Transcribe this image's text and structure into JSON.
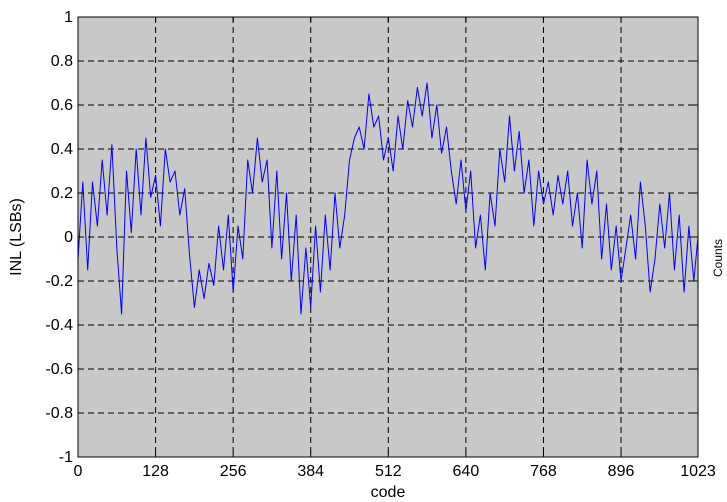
{
  "chart_data": {
    "type": "line",
    "title": "",
    "xlabel": "code",
    "ylabel": "INL (LSBs)",
    "xlim": [
      0,
      1023
    ],
    "ylim": [
      -1,
      1
    ],
    "grid": true,
    "grid_style": "dashed",
    "plot_background": "#c8c8c8",
    "x_ticks": [
      0,
      128,
      256,
      384,
      512,
      640,
      768,
      896,
      1023
    ],
    "y_ticks": [
      1,
      0.8,
      0.6,
      0.4,
      0.2,
      0,
      -0.2,
      -0.4,
      -0.6,
      -0.8,
      -1
    ],
    "y_tick_labels": [
      "1",
      "0.8",
      "0.6",
      "0.4",
      "0.2",
      "0",
      "-0.2",
      "-0.4",
      "-0.6",
      "-0.8",
      "-1"
    ],
    "side_label": "Counts",
    "series": [
      {
        "color": "#0000ff",
        "x": [
          0,
          8,
          16,
          24,
          32,
          40,
          48,
          56,
          64,
          72,
          80,
          88,
          96,
          104,
          112,
          120,
          128,
          136,
          144,
          152,
          160,
          168,
          176,
          184,
          192,
          200,
          208,
          216,
          224,
          232,
          240,
          248,
          256,
          264,
          272,
          280,
          288,
          296,
          304,
          312,
          320,
          328,
          336,
          344,
          352,
          360,
          368,
          376,
          384,
          392,
          400,
          408,
          416,
          424,
          432,
          440,
          448,
          456,
          464,
          472,
          480,
          488,
          496,
          504,
          512,
          520,
          528,
          536,
          544,
          552,
          560,
          568,
          576,
          584,
          592,
          600,
          608,
          616,
          624,
          632,
          640,
          648,
          656,
          664,
          672,
          680,
          688,
          696,
          704,
          712,
          720,
          728,
          736,
          744,
          752,
          760,
          768,
          776,
          784,
          792,
          800,
          808,
          816,
          824,
          832,
          840,
          848,
          856,
          864,
          872,
          880,
          888,
          896,
          904,
          912,
          920,
          928,
          936,
          944,
          952,
          960,
          968,
          976,
          984,
          992,
          1000,
          1008,
          1016,
          1023
        ],
        "y": [
          -0.1,
          0.25,
          -0.15,
          0.25,
          0.05,
          0.35,
          0.1,
          0.42,
          -0.05,
          -0.35,
          0.3,
          0.02,
          0.4,
          0.1,
          0.45,
          0.18,
          0.28,
          0.05,
          0.4,
          0.25,
          0.3,
          0.1,
          0.22,
          -0.08,
          -0.32,
          -0.15,
          -0.28,
          -0.12,
          -0.22,
          0.05,
          -0.15,
          0.1,
          -0.25,
          0.05,
          -0.1,
          0.35,
          0.2,
          0.45,
          0.25,
          0.35,
          -0.05,
          0.3,
          -0.1,
          0.2,
          -0.2,
          0.1,
          -0.35,
          -0.05,
          -0.32,
          0.05,
          -0.25,
          0.1,
          -0.15,
          0.2,
          -0.05,
          0.1,
          0.35,
          0.45,
          0.5,
          0.4,
          0.65,
          0.5,
          0.55,
          0.35,
          0.45,
          0.3,
          0.55,
          0.4,
          0.62,
          0.5,
          0.68,
          0.55,
          0.7,
          0.45,
          0.6,
          0.38,
          0.5,
          0.3,
          0.15,
          0.35,
          0.12,
          0.3,
          -0.05,
          0.1,
          -0.15,
          0.2,
          0.05,
          0.4,
          0.25,
          0.55,
          0.3,
          0.48,
          0.2,
          0.35,
          0.05,
          0.3,
          0.15,
          0.25,
          0.1,
          0.28,
          0.15,
          0.3,
          0.05,
          0.2,
          -0.05,
          0.35,
          0.15,
          0.3,
          -0.1,
          0.15,
          -0.15,
          0.05,
          -0.2,
          -0.05,
          0.1,
          -0.1,
          0.25,
          0.05,
          -0.25,
          -0.1,
          0.15,
          -0.05,
          0.2,
          -0.15,
          0.1,
          -0.25,
          0.05,
          -0.2,
          0.0
        ]
      }
    ]
  }
}
